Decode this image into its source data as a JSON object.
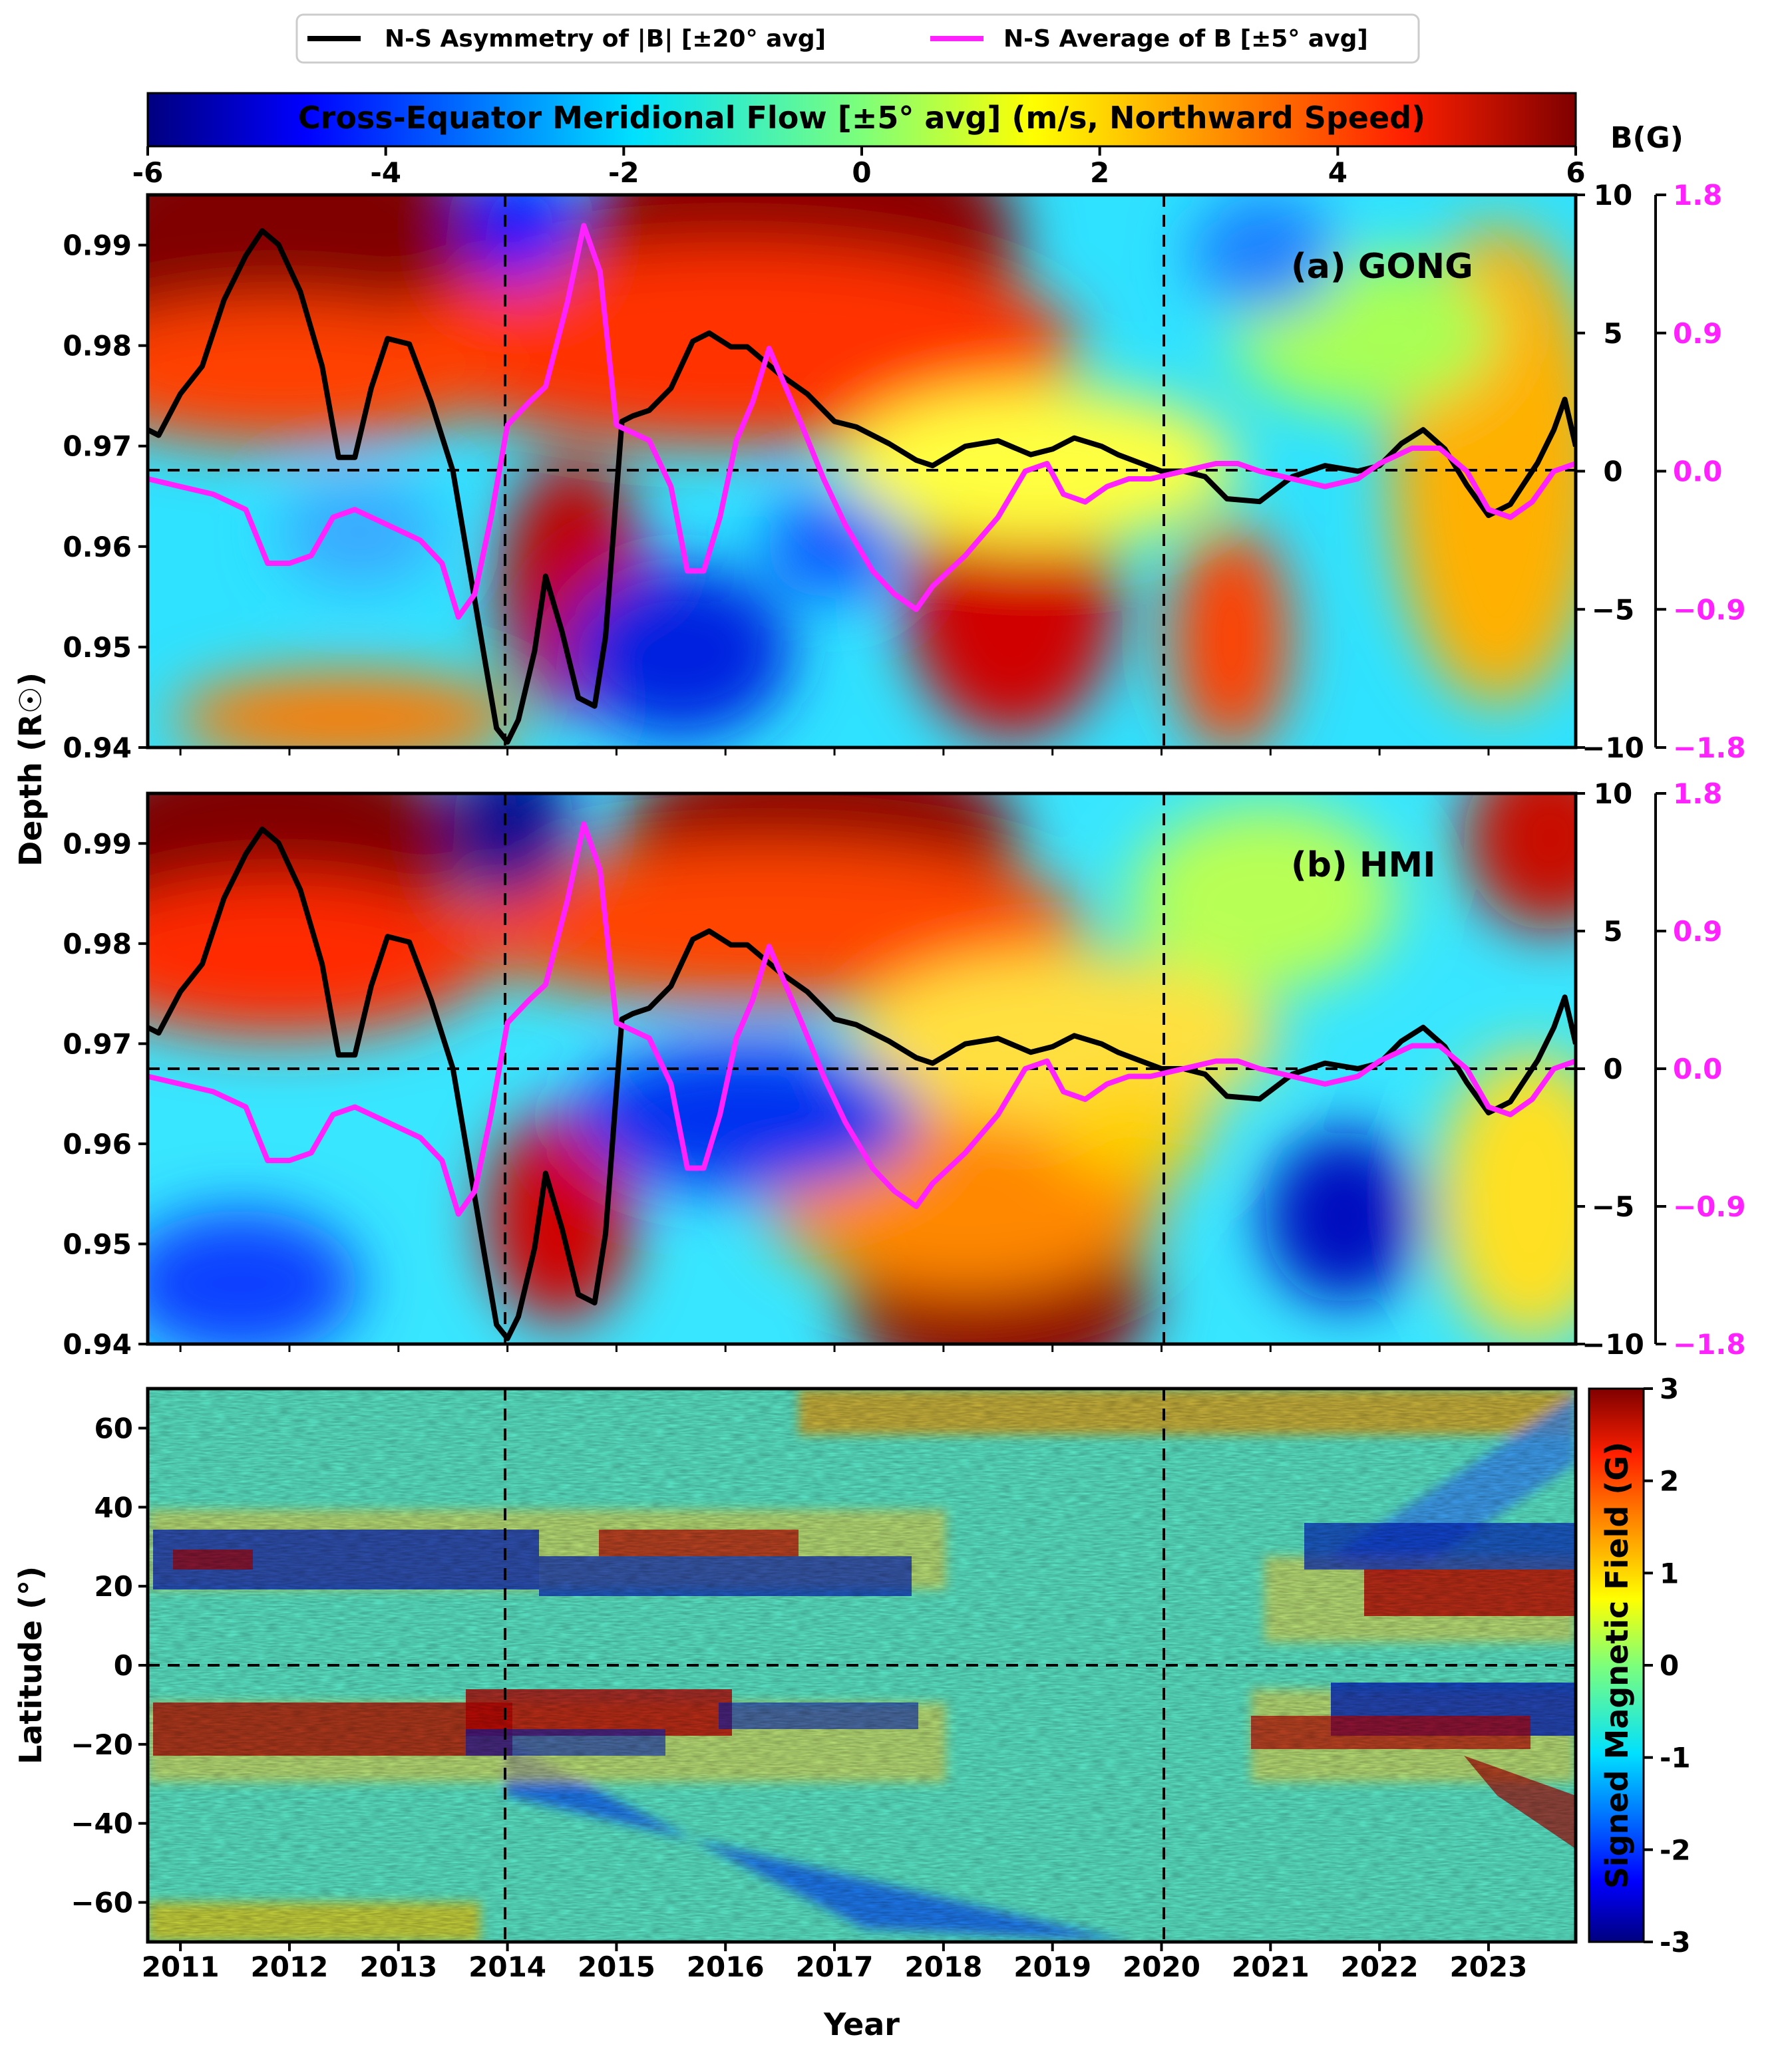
{
  "legend": {
    "items": [
      {
        "label": "N-S Asymmetry of |B| [±20° avg]",
        "color": "#000000"
      },
      {
        "label": "N-S Average of B [±5° avg]",
        "color": "#ff22ff"
      }
    ]
  },
  "colorbar_top": {
    "title": "Cross-Equator Meridional Flow [±5° avg] (m/s, Northward Speed)",
    "range": [
      -6,
      6
    ],
    "ticks": [
      "-6",
      "-4",
      "-2",
      "0",
      "2",
      "4",
      "6"
    ],
    "unit_label": "B(G)"
  },
  "colorbar_bottom": {
    "label": "Signed Magnetic Field (G)",
    "range": [
      -3,
      3
    ],
    "ticks": [
      "3",
      "2",
      "1",
      "0",
      "-1",
      "-2",
      "-3"
    ]
  },
  "axes": {
    "depth_label": "Depth (R☉)",
    "depth_ticks": [
      "0.99",
      "0.98",
      "0.97",
      "0.96",
      "0.95",
      "0.94"
    ],
    "latitude_label": "Latitude (°)",
    "latitude_ticks": [
      "60",
      "40",
      "20",
      "0",
      "−20",
      "−40",
      "−60"
    ],
    "year_label": "Year",
    "year_ticks": [
      "2011",
      "2012",
      "2013",
      "2014",
      "2015",
      "2016",
      "2017",
      "2018",
      "2019",
      "2020",
      "2021",
      "2022",
      "2023"
    ],
    "right_black_ticks": [
      "10",
      "5",
      "0",
      "−5",
      "−10"
    ],
    "right_magenta_ticks": [
      "1.8",
      "0.9",
      "0.0",
      "−0.9",
      "−1.8"
    ]
  },
  "panels": {
    "a": {
      "label": "(a) GONG"
    },
    "b": {
      "label": "(b) HMI"
    }
  },
  "chart_data": [
    {
      "type": "line",
      "title": "(a) GONG / (b) HMI — N-S Asymmetry of |B| [±20° avg]",
      "xlabel": "Year",
      "ylabel": "B(G)",
      "ylim": [
        -10,
        10
      ],
      "xlim": [
        2010.7,
        2023.8
      ],
      "series": [
        {
          "name": "N-S Asymmetry of |B| [±20° avg]",
          "x": [
            2010.7,
            2010.8,
            2011.0,
            2011.2,
            2011.4,
            2011.6,
            2011.75,
            2011.9,
            2012.1,
            2012.3,
            2012.45,
            2012.6,
            2012.75,
            2012.9,
            2013.1,
            2013.3,
            2013.5,
            2013.65,
            2013.8,
            2013.9,
            2014.0,
            2014.1,
            2014.25,
            2014.35,
            2014.5,
            2014.65,
            2014.8,
            2014.9,
            2015.05,
            2015.15,
            2015.3,
            2015.5,
            2015.7,
            2015.85,
            2016.05,
            2016.2,
            2016.5,
            2016.75,
            2017.0,
            2017.2,
            2017.5,
            2017.75,
            2017.9,
            2018.2,
            2018.5,
            2018.8,
            2019.0,
            2019.2,
            2019.45,
            2019.6,
            2019.8,
            2020.0,
            2020.2,
            2020.4,
            2020.6,
            2020.9,
            2021.2,
            2021.5,
            2021.8,
            2022.0,
            2022.2,
            2022.4,
            2022.6,
            2022.8,
            2023.0,
            2023.2,
            2023.45,
            2023.6,
            2023.7,
            2023.8
          ],
          "values": [
            1.5,
            1.3,
            2.8,
            3.8,
            6.2,
            7.8,
            8.7,
            8.2,
            6.5,
            3.8,
            0.5,
            0.5,
            3.0,
            4.8,
            4.6,
            2.5,
            0.0,
            -3.5,
            -7.0,
            -9.3,
            -9.8,
            -9.0,
            -6.5,
            -3.8,
            -5.8,
            -8.2,
            -8.5,
            -6.0,
            1.8,
            2.0,
            2.2,
            3.0,
            4.7,
            5.0,
            4.5,
            4.5,
            3.5,
            2.8,
            1.8,
            1.6,
            1.0,
            0.4,
            0.2,
            0.9,
            1.1,
            0.6,
            0.8,
            1.2,
            0.9,
            0.6,
            0.3,
            0.0,
            0.0,
            -0.2,
            -1.0,
            -1.1,
            -0.2,
            0.2,
            0.0,
            0.2,
            1.0,
            1.5,
            0.8,
            -0.5,
            -1.6,
            -1.2,
            0.3,
            1.5,
            2.6,
            0.9
          ]
        }
      ]
    },
    {
      "type": "line",
      "title": "(a) GONG / (b) HMI — N-S Average of B [±5° avg]",
      "xlabel": "Year",
      "ylabel": "B(G)",
      "ylim": [
        -1.8,
        1.8
      ],
      "xlim": [
        2010.7,
        2023.8
      ],
      "series": [
        {
          "name": "N-S Average of B [±5° avg]",
          "x": [
            2010.7,
            2011.0,
            2011.3,
            2011.6,
            2011.8,
            2012.0,
            2012.2,
            2012.4,
            2012.6,
            2012.9,
            2013.2,
            2013.4,
            2013.55,
            2013.7,
            2013.85,
            2014.0,
            2014.2,
            2014.35,
            2014.55,
            2014.7,
            2014.85,
            2015.0,
            2015.15,
            2015.3,
            2015.5,
            2015.65,
            2015.8,
            2015.95,
            2016.1,
            2016.25,
            2016.4,
            2016.55,
            2016.7,
            2016.9,
            2017.1,
            2017.35,
            2017.55,
            2017.75,
            2017.9,
            2018.2,
            2018.5,
            2018.75,
            2018.95,
            2019.1,
            2019.3,
            2019.5,
            2019.7,
            2019.9,
            2020.2,
            2020.5,
            2020.7,
            2020.9,
            2021.2,
            2021.5,
            2021.8,
            2022.0,
            2022.3,
            2022.55,
            2022.8,
            2023.0,
            2023.2,
            2023.4,
            2023.6,
            2023.8
          ],
          "values": [
            -0.05,
            -0.1,
            -0.15,
            -0.25,
            -0.6,
            -0.6,
            -0.55,
            -0.3,
            -0.25,
            -0.35,
            -0.45,
            -0.6,
            -0.95,
            -0.8,
            -0.3,
            0.3,
            0.45,
            0.55,
            1.1,
            1.6,
            1.3,
            0.3,
            0.25,
            0.2,
            -0.1,
            -0.65,
            -0.65,
            -0.3,
            0.2,
            0.45,
            0.8,
            0.55,
            0.3,
            -0.05,
            -0.35,
            -0.65,
            -0.8,
            -0.9,
            -0.75,
            -0.55,
            -0.3,
            0.0,
            0.05,
            -0.15,
            -0.2,
            -0.1,
            -0.05,
            -0.05,
            0.0,
            0.05,
            0.05,
            0.0,
            -0.05,
            -0.1,
            -0.05,
            0.05,
            0.15,
            0.15,
            0.0,
            -0.25,
            -0.3,
            -0.2,
            0.0,
            0.05
          ]
        }
      ]
    },
    {
      "type": "heatmap",
      "title": "Cross-Equator Meridional Flow [±5° avg] (m/s, Northward Speed)",
      "panels": [
        "(a) GONG",
        "(b) HMI"
      ],
      "xlabel": "Year",
      "ylabel": "Depth (R☉)",
      "xlim": [
        2010.7,
        2023.8
      ],
      "ylim": [
        0.94,
        0.995
      ],
      "colorscale_range": [
        -6,
        6
      ],
      "reference_lines": {
        "years": [
          2014,
          2020
        ],
        "depth": 0.9675
      }
    },
    {
      "type": "heatmap",
      "title": "Signed Magnetic Field (G)",
      "xlabel": "Year",
      "ylabel": "Latitude (°)",
      "xlim": [
        2010.7,
        2023.8
      ],
      "ylim": [
        -70,
        70
      ],
      "colorscale_range": [
        -3,
        3
      ],
      "reference_lines": {
        "years": [
          2014,
          2020
        ],
        "latitude": 0
      }
    }
  ]
}
